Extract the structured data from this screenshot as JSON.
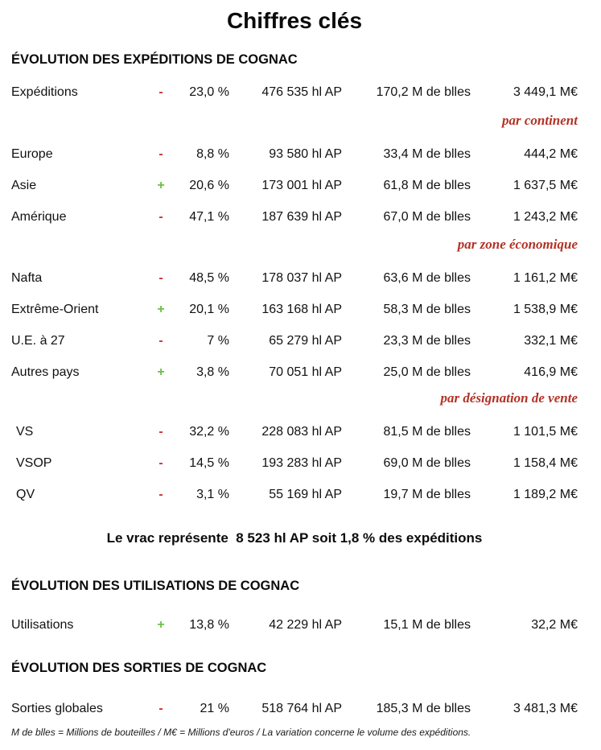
{
  "title": "Chiffres clés",
  "colors": {
    "negative": "#cc3333",
    "positive": "#6fbf44",
    "subtitle_red": "#b23226"
  },
  "sections": [
    {
      "heading": "ÉVOLUTION DES EXPÉDITIONS DE COGNAC",
      "groups": [
        {
          "rows": [
            {
              "label": "Expéditions",
              "sign": "-",
              "pct": "23,0 %",
              "volume": "476 535 hl AP",
              "bottles": "170,2 M de blles",
              "value": "3 449,1 M€"
            }
          ]
        },
        {
          "subtitle": "par continent",
          "rows": [
            {
              "label": "Europe",
              "sign": "-",
              "pct": "8,8 %",
              "volume": "93 580 hl AP",
              "bottles": "33,4 M de blles",
              "value": "444,2 M€"
            },
            {
              "label": "Asie",
              "sign": "+",
              "pct": "20,6 %",
              "volume": "173 001 hl AP",
              "bottles": "61,8 M de blles",
              "value": "1 637,5 M€"
            },
            {
              "label": "Amérique",
              "sign": "-",
              "pct": "47,1 %",
              "volume": "187 639 hl AP",
              "bottles": "67,0 M de blles",
              "value": "1 243,2 M€"
            }
          ]
        },
        {
          "subtitle": "par zone économique",
          "rows": [
            {
              "label": "Nafta",
              "sign": "-",
              "pct": "48,5 %",
              "volume": "178 037 hl AP",
              "bottles": "63,6 M de blles",
              "value": "1 161,2 M€"
            },
            {
              "label": "Extrême-Orient",
              "sign": "+",
              "pct": "20,1 %",
              "volume": "163 168 hl AP",
              "bottles": "58,3 M de blles",
              "value": "1 538,9 M€"
            },
            {
              "label": "U.E. à 27",
              "sign": "-",
              "pct": "7 %",
              "volume": "65 279 hl AP",
              "bottles": "23,3 M de blles",
              "value": "332,1 M€"
            },
            {
              "label": "Autres pays",
              "sign": "+",
              "pct": "3,8 %",
              "volume": "70 051 hl AP",
              "bottles": "25,0 M de blles",
              "value": "416,9 M€"
            }
          ]
        },
        {
          "subtitle": "par désignation de vente",
          "rows": [
            {
              "label": "VS",
              "sign": "-",
              "pct": "32,2 %",
              "volume": "228 083 hl AP",
              "bottles": "81,5 M de blles",
              "value": "1 101,5 M€"
            },
            {
              "label": "VSOP",
              "sign": "-",
              "pct": "14,5 %",
              "volume": "193 283 hl AP",
              "bottles": "69,0 M de blles",
              "value": "1 158,4 M€"
            },
            {
              "label": "QV",
              "sign": "-",
              "pct": "3,1 %",
              "volume": "55 169 hl AP",
              "bottles": "19,7 M de blles",
              "value": "1 189,2 M€"
            }
          ]
        }
      ],
      "note": "Le vrac représente  8 523 hl AP soit 1,8 % des expéditions"
    },
    {
      "heading": "ÉVOLUTION DES UTILISATIONS DE COGNAC",
      "groups": [
        {
          "rows": [
            {
              "label": "Utilisations",
              "sign": "+",
              "pct": "13,8 %",
              "volume": "42 229 hl AP",
              "bottles": "15,1 M de blles",
              "value": "32,2 M€"
            }
          ]
        }
      ]
    },
    {
      "heading": "ÉVOLUTION DES SORTIES DE COGNAC",
      "groups": [
        {
          "rows": [
            {
              "label": "Sorties globales",
              "sign": "-",
              "pct": "21 %",
              "volume": "518 764 hl AP",
              "bottles": "185,3 M de blles",
              "value": "3 481,3 M€"
            }
          ]
        }
      ]
    }
  ],
  "footnote": "M de blles = Millions de bouteilles / M€ = Millions d'euros / La variation concerne le volume des expéditions."
}
